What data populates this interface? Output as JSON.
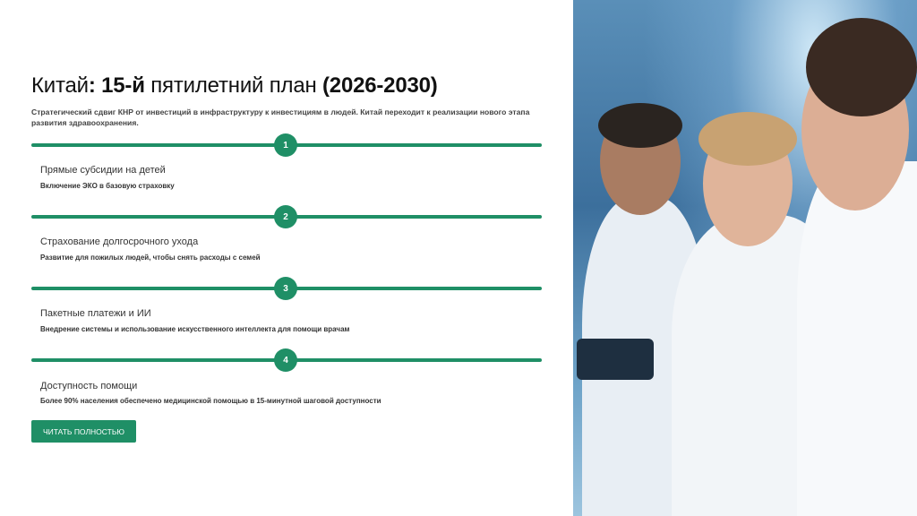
{
  "header": {
    "title_part1": "Китай",
    "title_part2": ": 15-й",
    "title_part3": " пятилетний план ",
    "title_part4": "(2026-2030)",
    "subtitle": "Стратегический сдвиг КНР от инвестиций в инфраструктуру к инвестициям в людей. Китай переходит к реализации нового этапа развития здравоохранения."
  },
  "steps": [
    {
      "number": "1",
      "title": "Прямые субсидии на детей",
      "text": "Включение ЭКО в базовую страховку"
    },
    {
      "number": "2",
      "title": "Страхование долгосрочного ухода",
      "text": "Развитие для пожилых людей, чтобы снять расходы с семей"
    },
    {
      "number": "3",
      "title": "Пакетные платежи и ИИ",
      "text": "Внедрение системы и использование искусственного интеллекта для помощи врачам"
    },
    {
      "number": "4",
      "title": "Доступность помощи",
      "text": "Более 90% населения обеспечено медицинской помощью в 15-минутной шаговой доступности"
    }
  ],
  "button": {
    "label": "ЧИТАТЬ ПОЛНОСТЬЮ"
  },
  "colors": {
    "accent": "#1f8f66"
  },
  "image": {
    "subject": "doctors-with-tablet-photo"
  }
}
